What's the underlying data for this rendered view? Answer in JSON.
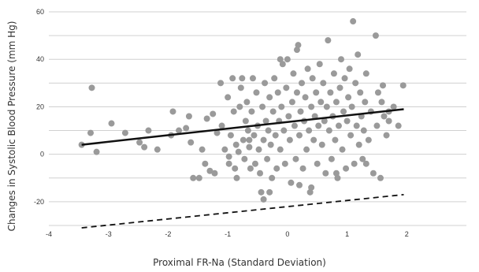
{
  "chart_data": {
    "type": "scatter",
    "title": "",
    "xlabel": "Proximal FR-Na (Standard Deviation)",
    "ylabel": "Changes in Systolic Blood Pressure (mm Hg)",
    "xlim": [
      -4,
      3
    ],
    "ylim": [
      -30,
      60
    ],
    "xticks": [
      -4,
      -3,
      -2,
      -1,
      0,
      1,
      2
    ],
    "yticks": [
      -20,
      0,
      20,
      40,
      60
    ],
    "grid": "horizontal",
    "colors": {
      "points": "#9a9a9a",
      "fit_line": "#111111",
      "dashed_line": "#111111",
      "grid": "#d0d0d0"
    },
    "fit_line": {
      "x": [
        -3.45,
        1.95
      ],
      "y": [
        4,
        19
      ]
    },
    "dashed_line": {
      "x": [
        -3.45,
        1.95
      ],
      "y": [
        -31,
        -17
      ]
    },
    "points": [
      [
        -3.45,
        4
      ],
      [
        -3.28,
        28
      ],
      [
        -3.3,
        9
      ],
      [
        -3.2,
        1
      ],
      [
        -2.95,
        13
      ],
      [
        -2.72,
        9
      ],
      [
        -2.48,
        5
      ],
      [
        -2.4,
        3
      ],
      [
        -2.33,
        10
      ],
      [
        -2.18,
        2
      ],
      [
        -1.92,
        18
      ],
      [
        -1.95,
        8
      ],
      [
        -1.82,
        10
      ],
      [
        -1.7,
        11
      ],
      [
        -1.65,
        16
      ],
      [
        -1.62,
        5
      ],
      [
        -1.58,
        -10
      ],
      [
        -1.48,
        -10
      ],
      [
        -1.43,
        2
      ],
      [
        -1.38,
        -4
      ],
      [
        -1.35,
        15
      ],
      [
        -1.3,
        -7
      ],
      [
        -1.25,
        17
      ],
      [
        -1.18,
        9
      ],
      [
        -1.12,
        30
      ],
      [
        -1.1,
        12
      ],
      [
        -1.05,
        2
      ],
      [
        -1.0,
        24
      ],
      [
        -0.98,
        -4
      ],
      [
        -0.95,
        8
      ],
      [
        -0.92,
        32
      ],
      [
        -0.9,
        18
      ],
      [
        -0.88,
        -6
      ],
      [
        -0.86,
        4
      ],
      [
        -0.85,
        -10
      ],
      [
        -0.82,
        1
      ],
      [
        -0.8,
        20
      ],
      [
        -0.78,
        28
      ],
      [
        -0.76,
        32
      ],
      [
        -0.74,
        6
      ],
      [
        -0.72,
        -2
      ],
      [
        -0.7,
        14
      ],
      [
        -0.68,
        22
      ],
      [
        -0.66,
        10
      ],
      [
        -0.64,
        3
      ],
      [
        -0.62,
        -6
      ],
      [
        -0.6,
        18
      ],
      [
        -0.58,
        32
      ],
      [
        -0.56,
        8
      ],
      [
        -0.54,
        -4
      ],
      [
        -0.52,
        26
      ],
      [
        -0.5,
        12
      ],
      [
        -0.48,
        2
      ],
      [
        -0.46,
        -8
      ],
      [
        -0.44,
        -16
      ],
      [
        -0.42,
        20
      ],
      [
        -0.4,
        6
      ],
      [
        -0.38,
        30
      ],
      [
        -0.36,
        14
      ],
      [
        -0.34,
        -2
      ],
      [
        -0.32,
        10
      ],
      [
        -0.3,
        24
      ],
      [
        -0.28,
        4
      ],
      [
        -0.26,
        -10
      ],
      [
        -0.24,
        18
      ],
      [
        -0.22,
        32
      ],
      [
        -0.2,
        8
      ],
      [
        -0.18,
        -6
      ],
      [
        -0.16,
        26
      ],
      [
        -0.14,
        14
      ],
      [
        -0.12,
        2
      ],
      [
        -0.1,
        20
      ],
      [
        -0.08,
        38
      ],
      [
        -0.06,
        10
      ],
      [
        -0.04,
        -4
      ],
      [
        -0.02,
        28
      ],
      [
        0.0,
        40
      ],
      [
        0.02,
        16
      ],
      [
        0.04,
        6
      ],
      [
        0.06,
        -12
      ],
      [
        0.08,
        22
      ],
      [
        0.1,
        34
      ],
      [
        0.12,
        12
      ],
      [
        0.14,
        -2
      ],
      [
        0.16,
        26
      ],
      [
        0.18,
        46
      ],
      [
        0.2,
        8
      ],
      [
        0.22,
        18
      ],
      [
        0.24,
        30
      ],
      [
        0.26,
        -6
      ],
      [
        0.28,
        14
      ],
      [
        0.3,
        24
      ],
      [
        0.32,
        2
      ],
      [
        0.34,
        36
      ],
      [
        0.36,
        10
      ],
      [
        0.38,
        -16
      ],
      [
        0.4,
        20
      ],
      [
        0.42,
        32
      ],
      [
        0.44,
        6
      ],
      [
        0.46,
        16
      ],
      [
        0.48,
        26
      ],
      [
        0.5,
        -4
      ],
      [
        0.52,
        12
      ],
      [
        0.54,
        38
      ],
      [
        0.56,
        22
      ],
      [
        0.58,
        4
      ],
      [
        0.6,
        30
      ],
      [
        0.62,
        14
      ],
      [
        0.64,
        -8
      ],
      [
        0.66,
        20
      ],
      [
        0.68,
        48
      ],
      [
        0.7,
        10
      ],
      [
        0.72,
        26
      ],
      [
        0.74,
        -2
      ],
      [
        0.76,
        16
      ],
      [
        0.78,
        34
      ],
      [
        0.8,
        6
      ],
      [
        0.82,
        22
      ],
      [
        0.84,
        -10
      ],
      [
        0.86,
        12
      ],
      [
        0.88,
        28
      ],
      [
        0.9,
        40
      ],
      [
        0.92,
        2
      ],
      [
        0.94,
        18
      ],
      [
        0.96,
        32
      ],
      [
        0.98,
        -6
      ],
      [
        1.0,
        14
      ],
      [
        1.02,
        24
      ],
      [
        1.04,
        36
      ],
      [
        1.06,
        8
      ],
      [
        1.08,
        20
      ],
      [
        1.1,
        56
      ],
      [
        1.12,
        -4
      ],
      [
        1.14,
        30
      ],
      [
        1.16,
        12
      ],
      [
        1.18,
        42
      ],
      [
        1.2,
        4
      ],
      [
        1.22,
        26
      ],
      [
        1.24,
        16
      ],
      [
        1.26,
        -2
      ],
      [
        1.28,
        10
      ],
      [
        1.3,
        22
      ],
      [
        1.32,
        34
      ],
      [
        1.36,
        6
      ],
      [
        1.4,
        18
      ],
      [
        1.44,
        -8
      ],
      [
        1.48,
        50
      ],
      [
        1.5,
        12
      ],
      [
        1.52,
        26
      ],
      [
        1.56,
        -10
      ],
      [
        1.58,
        22
      ],
      [
        1.62,
        16
      ],
      [
        1.66,
        8
      ],
      [
        1.7,
        18
      ],
      [
        1.78,
        20
      ],
      [
        1.86,
        12
      ],
      [
        1.94,
        29
      ],
      [
        1.7,
        14
      ],
      [
        1.6,
        29
      ],
      [
        0.4,
        -14
      ],
      [
        -0.3,
        -16
      ],
      [
        -0.4,
        -19
      ],
      [
        0.2,
        -13
      ],
      [
        -1.22,
        -8
      ],
      [
        -0.98,
        -1
      ],
      [
        -0.64,
        6
      ],
      [
        0.82,
        -8
      ],
      [
        1.32,
        -4
      ],
      [
        -0.12,
        40
      ],
      [
        0.16,
        44
      ]
    ]
  }
}
